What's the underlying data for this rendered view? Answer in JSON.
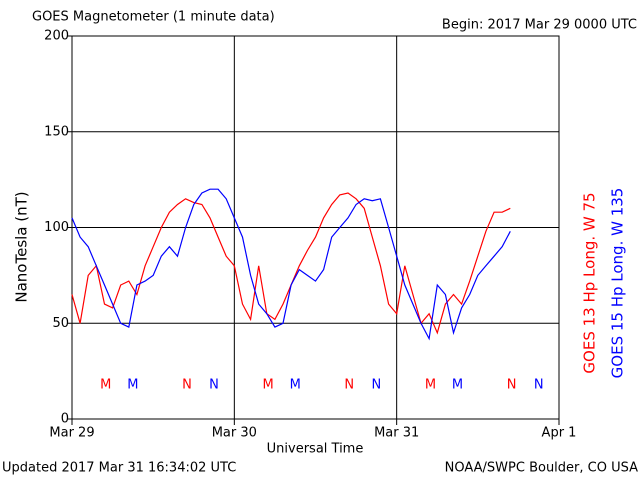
{
  "chart_data": {
    "type": "line",
    "title": "GOES Magnetometer (1 minute data)",
    "subtitle": "Begin:  2017 Mar 29 0000 UTC",
    "y_label": "NanoTesla (nT)",
    "x_label": "Universal Time",
    "footer_left": "Updated 2017 Mar 31 16:34:02 UTC",
    "footer_right": "NOAA/SWPC Boulder, CO USA",
    "grid": true,
    "xlim": [
      0,
      3
    ],
    "xticks": [
      {
        "value": 0,
        "label": "Mar 29"
      },
      {
        "value": 1,
        "label": "Mar 30"
      },
      {
        "value": 2,
        "label": "Mar 31"
      },
      {
        "value": 3,
        "label": "Apr 1"
      }
    ],
    "ylim": [
      0,
      200
    ],
    "yticks": [
      0,
      50,
      100,
      150,
      200
    ],
    "x": [
      0,
      0.05,
      0.1,
      0.15,
      0.2,
      0.25,
      0.3,
      0.35,
      0.4,
      0.45,
      0.5,
      0.55,
      0.6,
      0.65,
      0.7,
      0.75,
      0.8,
      0.85,
      0.9,
      0.95,
      1.0,
      1.05,
      1.1,
      1.15,
      1.2,
      1.25,
      1.3,
      1.35,
      1.4,
      1.45,
      1.5,
      1.55,
      1.6,
      1.65,
      1.7,
      1.75,
      1.8,
      1.85,
      1.9,
      1.95,
      2.0,
      2.05,
      2.1,
      2.15,
      2.2,
      2.25,
      2.3,
      2.35,
      2.4,
      2.45,
      2.5,
      2.55,
      2.6,
      2.65,
      2.7
    ],
    "series": [
      {
        "name": "GOES 13 Hp  Long. W 75",
        "color": "#ff0000",
        "values": [
          65,
          50,
          75,
          80,
          60,
          58,
          70,
          72,
          65,
          80,
          90,
          100,
          108,
          112,
          115,
          113,
          112,
          105,
          95,
          85,
          80,
          60,
          52,
          80,
          55,
          52,
          60,
          70,
          80,
          88,
          95,
          105,
          112,
          117,
          118,
          115,
          110,
          95,
          80,
          60,
          55,
          80,
          65,
          50,
          55,
          45,
          60,
          65,
          60,
          72,
          85,
          98,
          108,
          108,
          110
        ]
      },
      {
        "name": "GOES 15 Hp  Long. W 135",
        "color": "#0000ff",
        "values": [
          105,
          95,
          90,
          80,
          70,
          60,
          50,
          48,
          70,
          72,
          75,
          85,
          90,
          85,
          100,
          112,
          118,
          120,
          120,
          115,
          105,
          95,
          75,
          60,
          55,
          48,
          50,
          70,
          78,
          75,
          72,
          78,
          95,
          100,
          105,
          112,
          115,
          114,
          115,
          100,
          85,
          70,
          60,
          50,
          42,
          70,
          65,
          45,
          58,
          65,
          75,
          80,
          85,
          90,
          98
        ]
      }
    ],
    "markers": [
      {
        "label": "M",
        "x": 0.208,
        "series": 0
      },
      {
        "label": "M",
        "x": 0.375,
        "series": 1
      },
      {
        "label": "N",
        "x": 0.708,
        "series": 0
      },
      {
        "label": "N",
        "x": 0.875,
        "series": 1
      },
      {
        "label": "M",
        "x": 1.208,
        "series": 0
      },
      {
        "label": "M",
        "x": 1.375,
        "series": 1
      },
      {
        "label": "N",
        "x": 1.708,
        "series": 0
      },
      {
        "label": "N",
        "x": 1.875,
        "series": 1
      },
      {
        "label": "M",
        "x": 2.208,
        "series": 0
      },
      {
        "label": "M",
        "x": 2.375,
        "series": 1
      },
      {
        "label": "N",
        "x": 2.708,
        "series": 0
      },
      {
        "label": "N",
        "x": 2.875,
        "series": 1
      }
    ]
  }
}
